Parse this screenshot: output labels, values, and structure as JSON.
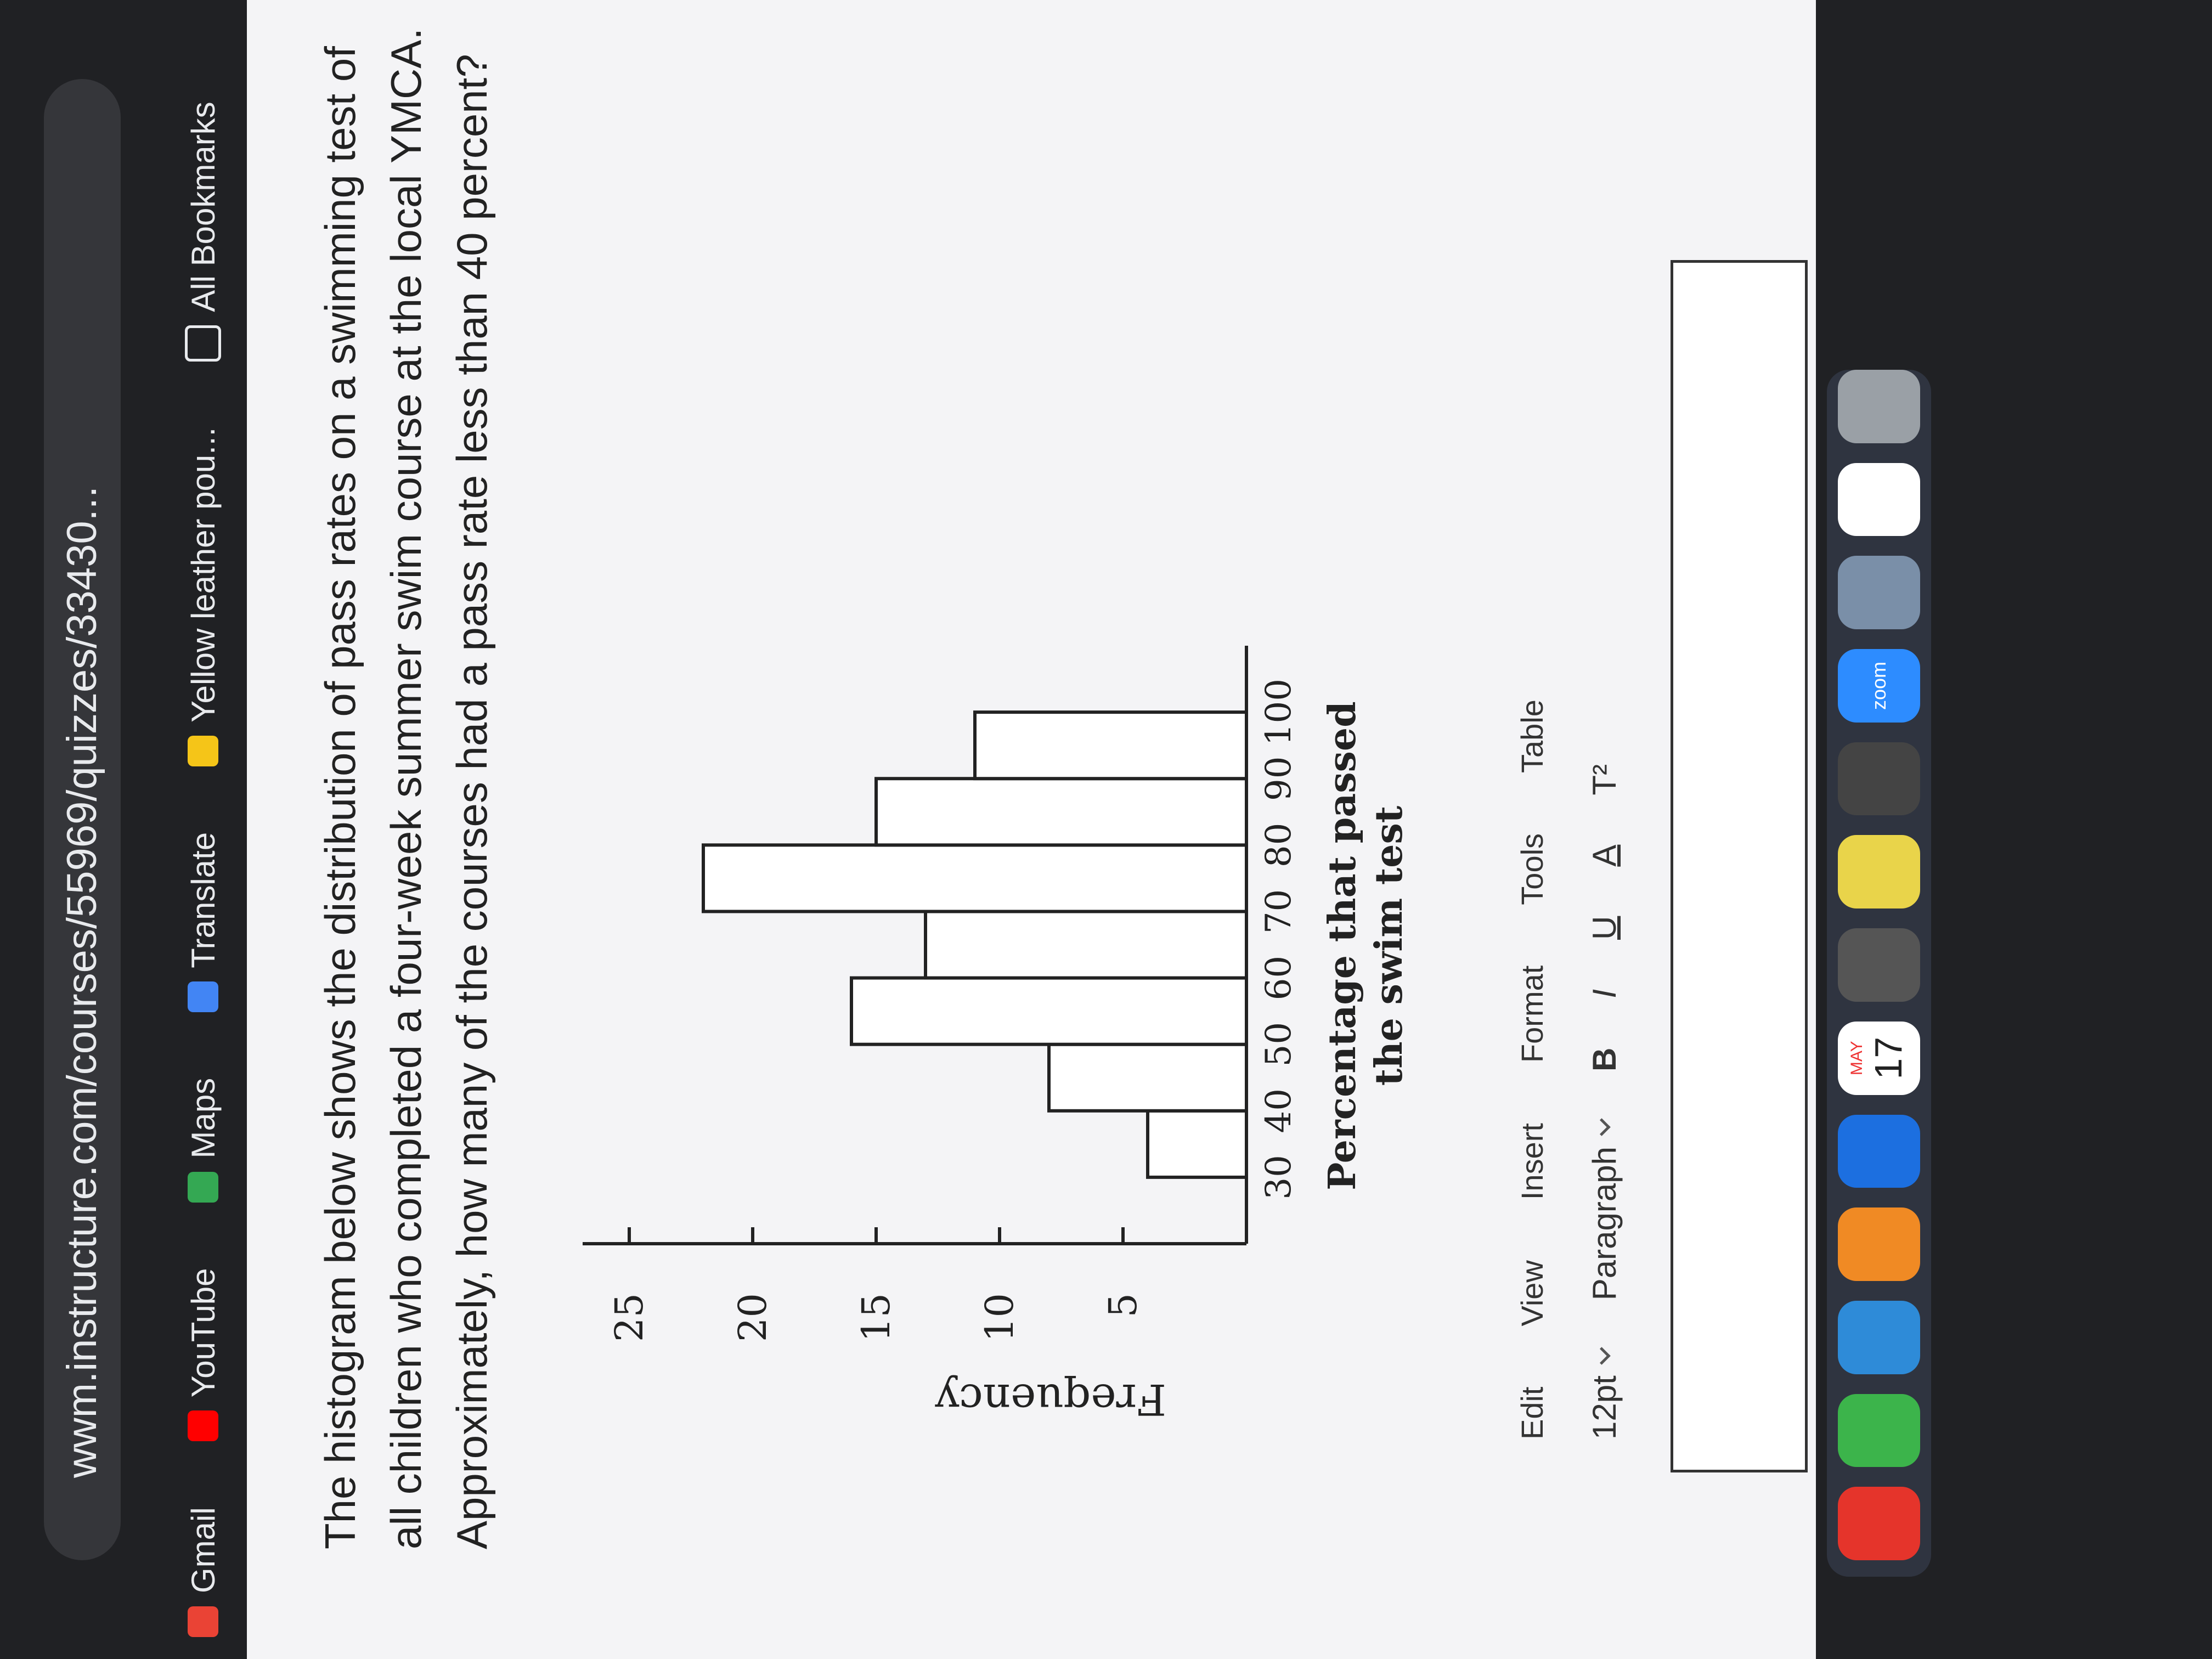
{
  "browser": {
    "url": "wwm.instructure.com/courses/55969/quizzes/33430...",
    "bookmarks": [
      "Gmail",
      "YouTube",
      "Maps",
      "Translate",
      "Yellow leather pou...",
      "All Bookmarks"
    ]
  },
  "question": {
    "lines": [
      "The histogram below shows the distribution of pass rates on a swimming test of",
      "all children who completed a four-week summer swim course at the local YMCA.",
      "Approximately, how many of the courses had a pass rate less than 40 percent?"
    ]
  },
  "chart_data": {
    "type": "histogram",
    "ylabel": "Frequency",
    "xlabel": [
      "Percentage that passed",
      "the swim test"
    ],
    "bins": [
      30,
      40,
      50,
      60,
      70,
      80,
      90,
      100
    ],
    "values": [
      4,
      8,
      16,
      13,
      22,
      15,
      11
    ],
    "color": "#ffffff",
    "xlim": [
      20,
      110
    ],
    "xticks": [
      30,
      40,
      50,
      60,
      70,
      80,
      90,
      100
    ],
    "ylim": [
      0,
      26
    ],
    "yticks": [
      5,
      10,
      15,
      20,
      25
    ],
    "grid": false
  },
  "editor": {
    "menu": [
      "Edit",
      "View",
      "Insert",
      "Format",
      "Tools",
      "Table"
    ],
    "font_size": "12pt",
    "block": "Paragraph",
    "tools": [
      "B",
      "I",
      "U",
      "A",
      "T²"
    ]
  },
  "dock": {
    "month": "MAY",
    "day": "17",
    "zoom": "zoom"
  }
}
